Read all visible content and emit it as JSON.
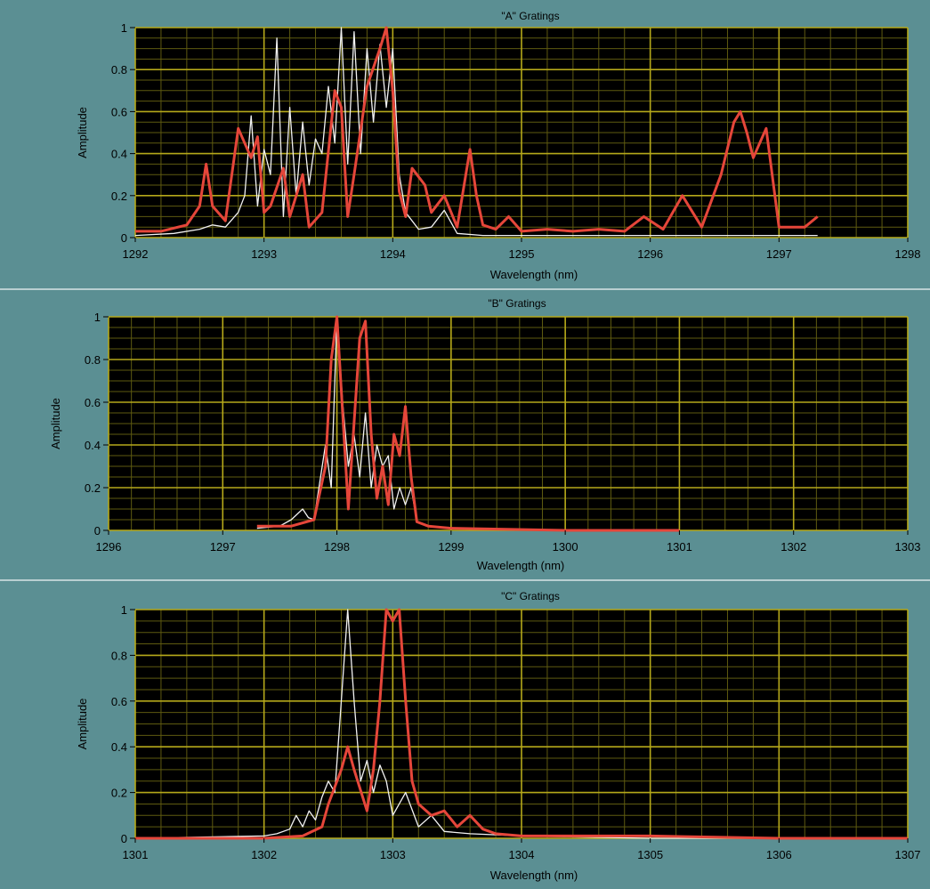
{
  "window": {
    "background_color": "#5b8f93",
    "plot_background": "#000000",
    "grid_color": "#b5a81a"
  },
  "chart_data": [
    {
      "type": "line",
      "title": "\"A\" Gratings",
      "xlabel": "Wavelength (nm)",
      "ylabel": "Amplitude",
      "xlim": [
        1292,
        1298
      ],
      "ylim": [
        0,
        1
      ],
      "x_ticks": [
        "1292",
        "1293",
        "1294",
        "1295",
        "1296",
        "1297",
        "1298"
      ],
      "y_ticks": [
        "0",
        "0.2",
        "0.4",
        "0.6",
        "0.8",
        "1"
      ],
      "grid": true,
      "series": [
        {
          "color": "#f2f2f2",
          "x": [
            1292.0,
            1292.3,
            1292.5,
            1292.6,
            1292.7,
            1292.8,
            1292.85,
            1292.9,
            1292.95,
            1293.0,
            1293.05,
            1293.1,
            1293.15,
            1293.2,
            1293.25,
            1293.3,
            1293.35,
            1293.4,
            1293.45,
            1293.5,
            1293.55,
            1293.6,
            1293.65,
            1293.7,
            1293.75,
            1293.8,
            1293.85,
            1293.9,
            1293.95,
            1294.0,
            1294.05,
            1294.1,
            1294.2,
            1294.3,
            1294.4,
            1294.5,
            1294.7,
            1295.0,
            1295.5,
            1296.0,
            1296.5,
            1297.0,
            1297.3
          ],
          "y": [
            0.01,
            0.02,
            0.04,
            0.06,
            0.05,
            0.12,
            0.2,
            0.58,
            0.15,
            0.42,
            0.3,
            0.95,
            0.1,
            0.62,
            0.2,
            0.55,
            0.25,
            0.47,
            0.4,
            0.72,
            0.45,
            1.0,
            0.35,
            0.98,
            0.4,
            0.9,
            0.55,
            0.92,
            0.62,
            0.9,
            0.3,
            0.12,
            0.04,
            0.05,
            0.13,
            0.02,
            0.01,
            0.01,
            0.01,
            0.01,
            0.01,
            0.01,
            0.01
          ]
        },
        {
          "color": "#e5463a",
          "x": [
            1292.0,
            1292.2,
            1292.4,
            1292.5,
            1292.55,
            1292.6,
            1292.7,
            1292.8,
            1292.9,
            1292.95,
            1293.0,
            1293.05,
            1293.15,
            1293.2,
            1293.3,
            1293.35,
            1293.45,
            1293.55,
            1293.6,
            1293.65,
            1293.7,
            1293.8,
            1293.9,
            1293.95,
            1294.0,
            1294.05,
            1294.1,
            1294.15,
            1294.25,
            1294.3,
            1294.4,
            1294.5,
            1294.6,
            1294.65,
            1294.7,
            1294.8,
            1294.9,
            1295.0,
            1295.2,
            1295.4,
            1295.6,
            1295.8,
            1295.95,
            1296.1,
            1296.25,
            1296.4,
            1296.55,
            1296.65,
            1296.7,
            1296.75,
            1296.8,
            1296.9,
            1297.0,
            1297.2,
            1297.3
          ],
          "y": [
            0.03,
            0.03,
            0.06,
            0.15,
            0.35,
            0.15,
            0.08,
            0.52,
            0.38,
            0.48,
            0.12,
            0.15,
            0.33,
            0.1,
            0.3,
            0.05,
            0.12,
            0.7,
            0.62,
            0.1,
            0.3,
            0.72,
            0.9,
            1.0,
            0.7,
            0.22,
            0.1,
            0.33,
            0.25,
            0.12,
            0.2,
            0.05,
            0.42,
            0.2,
            0.06,
            0.04,
            0.1,
            0.03,
            0.04,
            0.03,
            0.04,
            0.03,
            0.1,
            0.04,
            0.2,
            0.05,
            0.3,
            0.55,
            0.6,
            0.5,
            0.38,
            0.52,
            0.05,
            0.05,
            0.1
          ]
        }
      ]
    },
    {
      "type": "line",
      "title": "\"B\" Gratings",
      "xlabel": "Wavelength (nm)",
      "ylabel": "Amplitude",
      "xlim": [
        1296,
        1303
      ],
      "ylim": [
        0,
        1
      ],
      "x_ticks": [
        "1296",
        "1297",
        "1298",
        "1299",
        "1300",
        "1301",
        "1302",
        "1303"
      ],
      "y_ticks": [
        "0",
        "0.2",
        "0.4",
        "0.6",
        "0.8",
        "1"
      ],
      "grid": true,
      "series": [
        {
          "color": "#f2f2f2",
          "x": [
            1297.3,
            1297.5,
            1297.6,
            1297.7,
            1297.75,
            1297.8,
            1297.9,
            1297.95,
            1298.0,
            1298.05,
            1298.1,
            1298.15,
            1298.2,
            1298.25,
            1298.3,
            1298.35,
            1298.4,
            1298.45,
            1298.5,
            1298.55,
            1298.6,
            1298.65,
            1298.7,
            1298.8,
            1299.0,
            1300.0,
            1301.0
          ],
          "y": [
            0.01,
            0.02,
            0.05,
            0.1,
            0.06,
            0.05,
            0.4,
            0.2,
            1.0,
            0.6,
            0.3,
            0.45,
            0.25,
            0.55,
            0.2,
            0.4,
            0.3,
            0.35,
            0.1,
            0.2,
            0.12,
            0.2,
            0.04,
            0.02,
            0.01,
            0.0,
            0.0
          ]
        },
        {
          "color": "#e5463a",
          "x": [
            1297.3,
            1297.6,
            1297.8,
            1297.9,
            1297.95,
            1298.0,
            1298.05,
            1298.1,
            1298.15,
            1298.2,
            1298.25,
            1298.3,
            1298.35,
            1298.4,
            1298.45,
            1298.5,
            1298.55,
            1298.6,
            1298.65,
            1298.7,
            1298.8,
            1299.0,
            1300.0,
            1301.0
          ],
          "y": [
            0.02,
            0.02,
            0.05,
            0.3,
            0.8,
            1.0,
            0.55,
            0.1,
            0.5,
            0.9,
            0.98,
            0.45,
            0.15,
            0.3,
            0.12,
            0.45,
            0.35,
            0.58,
            0.25,
            0.04,
            0.02,
            0.01,
            0.0,
            0.0
          ]
        }
      ]
    },
    {
      "type": "line",
      "title": "\"C\" Gratings",
      "xlabel": "Wavelength (nm)",
      "ylabel": "Amplitude",
      "xlim": [
        1301,
        1307
      ],
      "ylim": [
        0,
        1
      ],
      "x_ticks": [
        "1301",
        "1302",
        "1303",
        "1304",
        "1305",
        "1306",
        "1307"
      ],
      "y_ticks": [
        "0",
        "0.2",
        "0.4",
        "0.6",
        "0.8",
        "1"
      ],
      "grid": true,
      "series": [
        {
          "color": "#f2f2f2",
          "x": [
            1301.0,
            1302.0,
            1302.1,
            1302.2,
            1302.25,
            1302.3,
            1302.35,
            1302.4,
            1302.45,
            1302.5,
            1302.55,
            1302.6,
            1302.65,
            1302.7,
            1302.75,
            1302.8,
            1302.85,
            1302.9,
            1302.95,
            1303.0,
            1303.1,
            1303.2,
            1303.3,
            1303.4,
            1303.6,
            1304.0,
            1305.0,
            1306.0,
            1307.0
          ],
          "y": [
            0.0,
            0.01,
            0.02,
            0.04,
            0.1,
            0.05,
            0.12,
            0.08,
            0.18,
            0.25,
            0.2,
            0.6,
            1.0,
            0.6,
            0.25,
            0.34,
            0.2,
            0.32,
            0.25,
            0.1,
            0.2,
            0.05,
            0.1,
            0.03,
            0.02,
            0.01,
            0.0,
            0.0,
            0.0
          ]
        },
        {
          "color": "#e5463a",
          "x": [
            1301.0,
            1302.0,
            1302.3,
            1302.45,
            1302.5,
            1302.6,
            1302.65,
            1302.7,
            1302.8,
            1302.85,
            1302.9,
            1302.95,
            1303.0,
            1303.05,
            1303.1,
            1303.15,
            1303.2,
            1303.3,
            1303.4,
            1303.5,
            1303.6,
            1303.7,
            1303.8,
            1304.0,
            1305.0,
            1306.0,
            1307.0
          ],
          "y": [
            0.0,
            0.0,
            0.01,
            0.05,
            0.15,
            0.3,
            0.4,
            0.3,
            0.12,
            0.3,
            0.6,
            1.0,
            0.95,
            1.0,
            0.6,
            0.25,
            0.15,
            0.1,
            0.12,
            0.05,
            0.1,
            0.04,
            0.02,
            0.01,
            0.01,
            0.0,
            0.0
          ]
        }
      ]
    }
  ]
}
